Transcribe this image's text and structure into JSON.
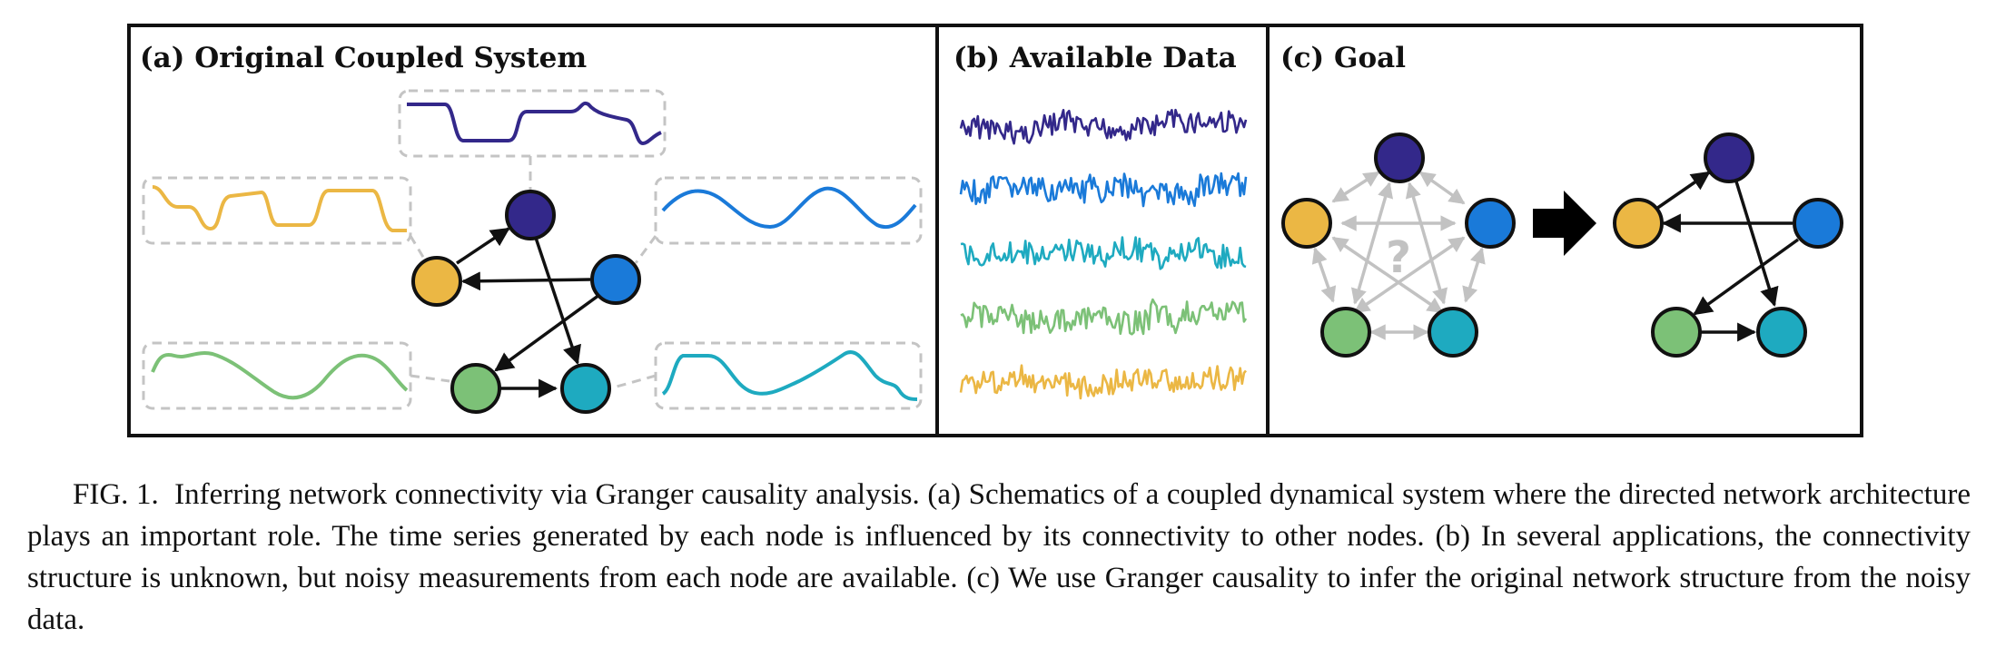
{
  "panels": {
    "a": {
      "label": "(a) Original Coupled System"
    },
    "b": {
      "label": "(b) Available Data"
    },
    "c": {
      "label": "(c) Goal",
      "unknown_mark": "?"
    }
  },
  "colors": {
    "node1": "#33288a",
    "node2": "#1a7ad9",
    "node3": "#1eaac0",
    "node4": "#7cc177",
    "node5": "#ebb744",
    "faint_edge": "#c2c2c2",
    "edge": "#111111",
    "dashed_box": "#c4c4c4"
  },
  "network": {
    "nodes": [
      "node1",
      "node2",
      "node3",
      "node4",
      "node5"
    ],
    "true_edges": [
      [
        "node5",
        "node1"
      ],
      [
        "node1",
        "node3"
      ],
      [
        "node2",
        "node5"
      ],
      [
        "node2",
        "node4"
      ],
      [
        "node4",
        "node3"
      ]
    ]
  },
  "caption": {
    "label": "FIG. 1.",
    "text": "Inferring network connectivity via Granger causality analysis. (a) Schematics of a coupled dynamical system where the directed network architecture plays an important role. The time series generated by each node is influenced by its connectivity to other nodes. (b) In several applications, the connectivity structure is unknown, but noisy measurements from each node are available. (c) We use Granger causality to infer the original network structure from the noisy data."
  }
}
